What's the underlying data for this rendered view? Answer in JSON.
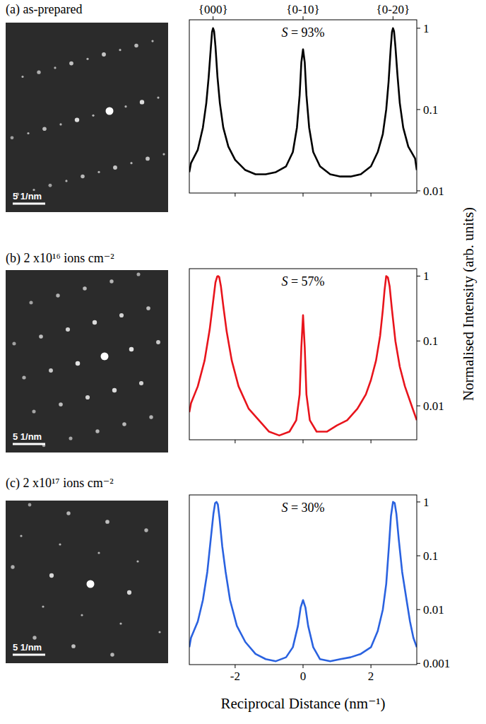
{
  "chart_data": [
    {
      "type": "line",
      "title": "(a) as-prepared",
      "annotation": "S = 93%",
      "scale_bar_label": "5 1/nm",
      "color": "#000000",
      "log": "y",
      "tick_labels": "y",
      "xlim": [
        -3.35,
        3.35
      ],
      "xticks": [
        -2,
        0,
        2
      ],
      "x2ticks": [
        {
          "value": -2.65,
          "label": "{000}"
        },
        {
          "value": 0,
          "label": "{0-10}"
        },
        {
          "value": 2.65,
          "label": "{0-20}"
        }
      ],
      "ylim": [
        0.0094,
        1.27
      ],
      "yticks": [
        0.01,
        0.1,
        1
      ],
      "x": [
        -3.35,
        -3.3,
        -3.1,
        -2.95,
        -2.85,
        -2.78,
        -2.72,
        -2.68,
        -2.65,
        -2.62,
        -2.58,
        -2.52,
        -2.45,
        -2.35,
        -2.2,
        -2.0,
        -1.7,
        -1.4,
        -1.1,
        -0.8,
        -0.5,
        -0.3,
        -0.18,
        -0.1,
        -0.05,
        0,
        0.05,
        0.1,
        0.18,
        0.3,
        0.5,
        0.8,
        1.1,
        1.4,
        1.7,
        2.0,
        2.2,
        2.35,
        2.45,
        2.52,
        2.58,
        2.62,
        2.65,
        2.68,
        2.72,
        2.78,
        2.85,
        2.95,
        3.1,
        3.3,
        3.35
      ],
      "values": [
        0.017,
        0.022,
        0.032,
        0.06,
        0.12,
        0.25,
        0.55,
        0.9,
        1.0,
        0.92,
        0.6,
        0.25,
        0.12,
        0.06,
        0.035,
        0.024,
        0.018,
        0.016,
        0.016,
        0.017,
        0.02,
        0.03,
        0.06,
        0.15,
        0.38,
        0.55,
        0.38,
        0.15,
        0.06,
        0.03,
        0.02,
        0.016,
        0.015,
        0.015,
        0.016,
        0.02,
        0.03,
        0.05,
        0.1,
        0.22,
        0.55,
        0.9,
        1.0,
        0.92,
        0.6,
        0.27,
        0.12,
        0.06,
        0.035,
        0.025,
        0.018
      ]
    },
    {
      "type": "line",
      "title": "(b) 2 x10¹⁶ ions cm⁻²",
      "annotation": "S = 57%",
      "scale_bar_label": "5 1/nm",
      "y_label": "Normalised Intensity (arb. units)",
      "color": "#e8141c",
      "log": "y",
      "tick_labels": "y",
      "xlim": [
        -3.35,
        3.35
      ],
      "xticks": [
        -2,
        0,
        2
      ],
      "ylim": [
        0.003,
        1.3
      ],
      "yticks": [
        0.01,
        0.1,
        1
      ],
      "x": [
        -3.35,
        -3.3,
        -3.1,
        -2.9,
        -2.75,
        -2.65,
        -2.58,
        -2.53,
        -2.5,
        -2.47,
        -2.42,
        -2.35,
        -2.25,
        -2.1,
        -1.9,
        -1.6,
        -1.3,
        -1.0,
        -0.7,
        -0.4,
        -0.2,
        -0.1,
        -0.05,
        0,
        0.05,
        0.1,
        0.2,
        0.4,
        0.7,
        1.0,
        1.3,
        1.6,
        1.85,
        2.0,
        2.15,
        2.27,
        2.35,
        2.4,
        2.45,
        2.5,
        2.55,
        2.62,
        2.72,
        2.85,
        3.0,
        3.2,
        3.35
      ],
      "values": [
        0.008,
        0.011,
        0.02,
        0.05,
        0.15,
        0.4,
        0.8,
        0.98,
        1.0,
        0.97,
        0.7,
        0.35,
        0.14,
        0.05,
        0.02,
        0.009,
        0.006,
        0.004,
        0.0035,
        0.004,
        0.006,
        0.015,
        0.08,
        0.25,
        0.08,
        0.015,
        0.006,
        0.004,
        0.004,
        0.005,
        0.006,
        0.009,
        0.015,
        0.025,
        0.05,
        0.12,
        0.3,
        0.6,
        1.0,
        0.95,
        0.7,
        0.3,
        0.1,
        0.04,
        0.02,
        0.01,
        0.006
      ]
    },
    {
      "type": "line",
      "title": "(c) 2 x10¹⁷ ions cm⁻²",
      "annotation": "S = 30%",
      "scale_bar_label": "5 1/nm",
      "x_label": "Reciprocal Distance (nm⁻¹)",
      "color": "#2a62e0",
      "log": "y",
      "tick_labels": true,
      "xlim": [
        -3.35,
        3.35
      ],
      "xticks": [
        -2,
        0,
        2
      ],
      "ylim": [
        0.00095,
        1.35
      ],
      "yticks": [
        0.001,
        0.01,
        0.1,
        1
      ],
      "x": [
        -3.35,
        -3.3,
        -3.1,
        -2.95,
        -2.82,
        -2.72,
        -2.64,
        -2.59,
        -2.55,
        -2.51,
        -2.46,
        -2.38,
        -2.28,
        -2.15,
        -1.95,
        -1.7,
        -1.4,
        -1.1,
        -0.8,
        -0.5,
        -0.3,
        -0.15,
        -0.07,
        0,
        0.07,
        0.15,
        0.3,
        0.5,
        0.8,
        1.1,
        1.4,
        1.7,
        2.0,
        2.2,
        2.35,
        2.45,
        2.53,
        2.59,
        2.65,
        2.7,
        2.75,
        2.82,
        2.92,
        3.05,
        3.15,
        3.25,
        3.35
      ],
      "values": [
        0.002,
        0.003,
        0.006,
        0.015,
        0.05,
        0.2,
        0.6,
        0.95,
        1.0,
        0.9,
        0.5,
        0.15,
        0.05,
        0.015,
        0.005,
        0.0025,
        0.0015,
        0.0012,
        0.0011,
        0.0013,
        0.002,
        0.005,
        0.011,
        0.015,
        0.011,
        0.005,
        0.002,
        0.0012,
        0.0011,
        0.0012,
        0.0013,
        0.0015,
        0.002,
        0.004,
        0.01,
        0.03,
        0.15,
        0.55,
        1.0,
        0.95,
        0.6,
        0.2,
        0.05,
        0.015,
        0.006,
        0.003,
        0.002
      ]
    }
  ]
}
